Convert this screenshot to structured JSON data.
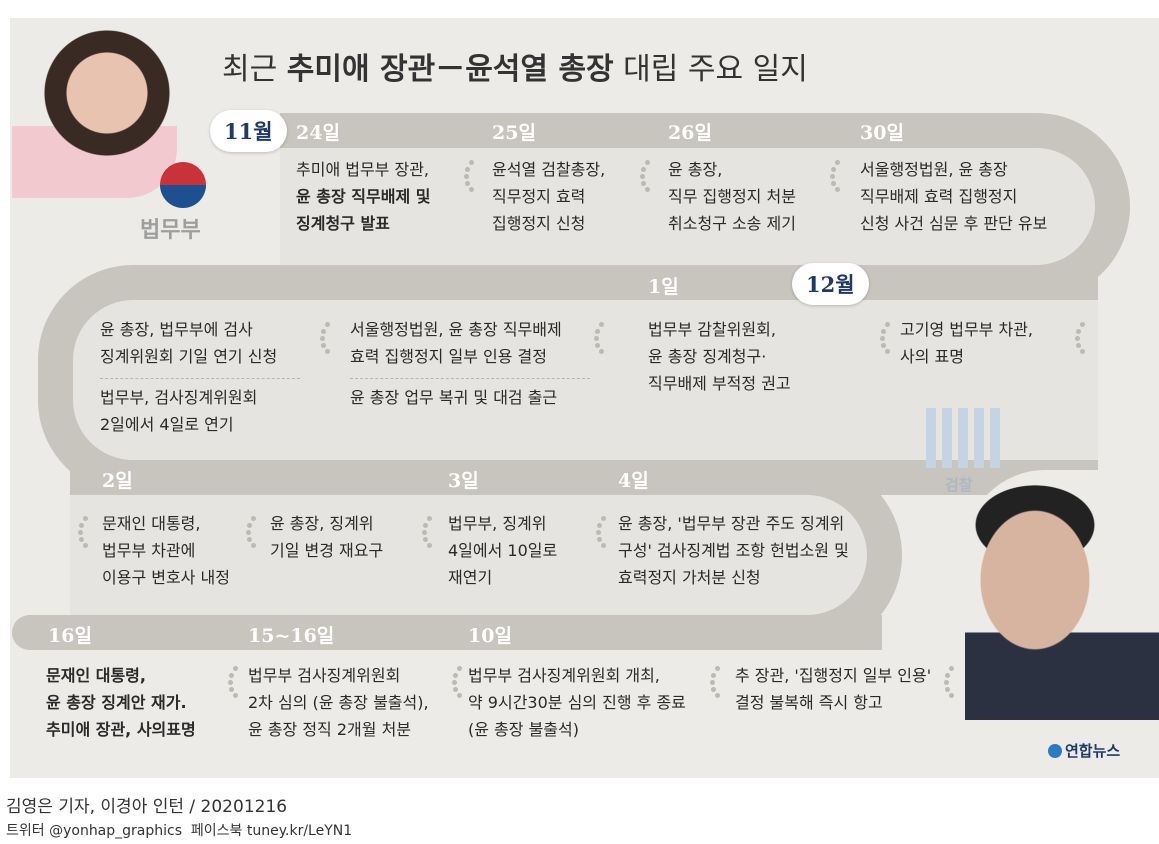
{
  "title": {
    "prefix": "최근 ",
    "bold": "추미애 장관－윤석열 총장",
    "suffix": " 대립 주요 일지"
  },
  "months": {
    "nov": "11월",
    "dec": "12월"
  },
  "logos": {
    "ministry": "법무부",
    "prosecution": "검찰",
    "agency": "연합뉴스"
  },
  "row1": [
    {
      "date": "24일",
      "lines": "추미애 법무부 장관,",
      "bold": "윤 총장 직무배제 및\n징계청구 발표"
    },
    {
      "date": "25일",
      "lines": "윤석열 검찰총장,\n직무정지 효력\n집행정지 신청"
    },
    {
      "date": "26일",
      "lines": "윤 총장,\n직무 집행정지 처분\n취소청구 소송 제기"
    },
    {
      "date": "30일",
      "lines": "서울행정법원, 윤 총장\n직무배제 효력 집행정지\n신청 사건 심문 후 판단 유보"
    }
  ],
  "row2": [
    {
      "a": "윤 총장, 법무부에 검사\n징계위원회 기일 연기 신청",
      "b": "법무부, 검사징계위원회\n2일에서 4일로 연기"
    },
    {
      "a": "서울행정법원, 윤 총장 직무배제\n효력 집행정지 일부 인용 결정",
      "b": "윤 총장 업무 복귀 및 대검 출근"
    },
    {
      "date": "1일",
      "lines": "법무부 감찰위원회,\n윤 총장 징계청구·\n직무배제 부적정 권고"
    },
    {
      "lines": "고기영 법무부 차관,\n사의 표명"
    }
  ],
  "row3": [
    {
      "date": "2일",
      "lines": "문재인 대통령,\n법무부 차관에\n이용구 변호사 내정"
    },
    {
      "lines": "윤 총장, 징계위\n기일 변경 재요구"
    },
    {
      "date": "3일",
      "lines": "법무부, 징계위\n4일에서 10일로\n재연기"
    },
    {
      "date": "4일",
      "lines": "윤 총장, '법무부 장관 주도 징계위\n구성' 검사징계법 조항 헌법소원 및\n효력정지 가처분 신청"
    }
  ],
  "row4": [
    {
      "date": "16일",
      "lines": "문재인 대통령,\n윤 총장 징계안 재가.\n추미애 장관, 사의표명"
    },
    {
      "date": "15~16일",
      "lines": "법무부 검사징계위원회\n2차 심의 (윤 총장 불출석),\n윤 총장 정직 2개월 처분"
    },
    {
      "date": "10일",
      "lines": "법무부 검사징계위원회 개최,\n약 9시간30분 심의 진행 후 종료\n(윤 총장 불출석)"
    },
    {
      "lines": "추 장관, '집행정지 일부 인용'\n결정 불복해 즉시 항고"
    }
  ],
  "credit": "김영은 기자, 이경아 인턴 / 20201216",
  "social": "트위터 @yonhap_graphics  페이스북 tuney.kr/LeYN1",
  "colors": {
    "band": "#c8c4be",
    "month": "#1f3a66"
  }
}
